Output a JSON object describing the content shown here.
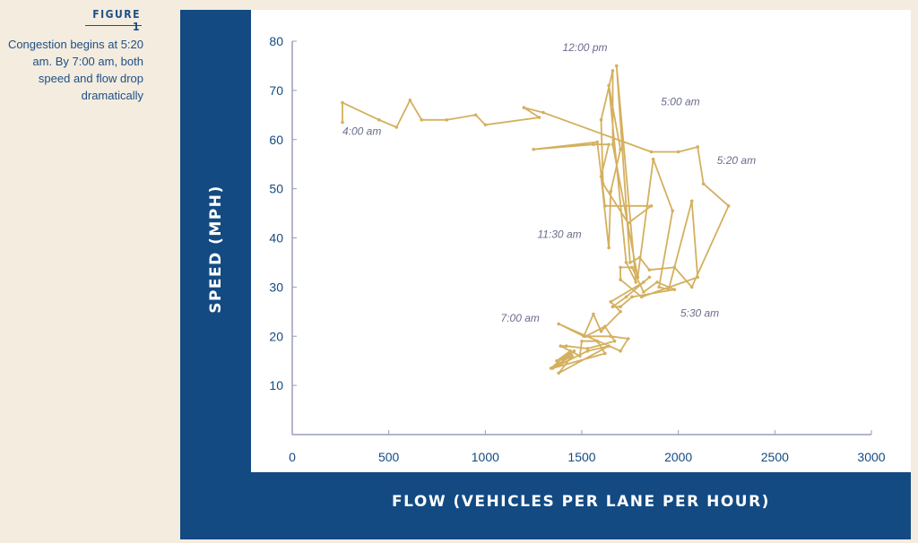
{
  "figure": {
    "label": "FIGURE 1",
    "caption": "Congestion begins at 5:20 am. By 7:00 am, both speed and flow drop dramatically"
  },
  "colors": {
    "background": "#f3ecdf",
    "panel": "#134a82",
    "accent_text": "#1f4f86",
    "series": "#d4b05f",
    "annotation": "#6a6d8c"
  },
  "chart_data": {
    "type": "scatter",
    "xlabel": "FLOW (VEHICLES PER LANE PER HOUR)",
    "ylabel": "SPEED (MPH)",
    "xlim": [
      0,
      3000
    ],
    "ylim": [
      0,
      80
    ],
    "xticks": [
      0,
      500,
      1000,
      1500,
      2000,
      2500,
      3000
    ],
    "yticks": [
      10,
      20,
      30,
      40,
      50,
      60,
      70,
      80
    ],
    "grid": false,
    "series": [
      {
        "x": [
          260,
          260,
          450,
          540,
          610,
          670,
          800,
          950,
          1000,
          1280,
          1200,
          1300,
          1860,
          2000,
          2100,
          2130,
          2260,
          2070,
          1980,
          1850,
          1800,
          1750,
          1680,
          1780,
          1730,
          1640,
          1700,
          1650,
          1640,
          1600,
          1640,
          1560,
          1250,
          1580,
          1620,
          1860,
          1740,
          1610,
          1600,
          1660,
          1660,
          1790,
          1870,
          1970,
          1900,
          1950,
          2070,
          2100,
          1810,
          1700,
          1700,
          1760,
          1820,
          1890,
          1980,
          1760,
          1700,
          1660,
          1730,
          1850,
          1820,
          1650,
          1700,
          1600,
          1560,
          1510,
          1380,
          1700,
          1740,
          1650,
          1520,
          1620,
          1670,
          1530,
          1420,
          1390,
          1490,
          1500,
          1580,
          1620,
          1350,
          1530,
          1640,
          1380,
          1450,
          1340,
          1400,
          1460,
          1380,
          1440,
          1370
        ],
        "y": [
          63.5,
          67.5,
          64,
          62.5,
          68,
          64,
          64,
          65,
          63,
          64.5,
          66.5,
          65.5,
          57.5,
          57.5,
          58.5,
          51,
          46.5,
          30,
          34,
          33.5,
          36,
          35,
          75,
          31,
          35,
          71,
          58,
          49.5,
          38,
          52.5,
          59,
          59,
          58,
          59.5,
          46.5,
          46.5,
          43,
          51,
          64,
          74,
          59,
          32,
          56,
          45.5,
          30,
          29.5,
          47.5,
          32,
          28,
          31.5,
          34,
          34,
          29,
          31,
          29.5,
          28,
          26,
          26,
          28,
          32,
          31,
          27,
          25,
          21,
          24.5,
          20,
          22.5,
          17,
          19.5,
          20,
          20,
          22,
          19,
          17.5,
          18,
          18,
          16,
          19,
          19,
          16.5,
          13.5,
          17,
          18,
          12.5,
          16,
          13.5,
          15.5,
          17,
          14,
          17,
          15
        ]
      }
    ],
    "annotations": [
      {
        "text": "4:00 am",
        "x": 260,
        "y": 61
      },
      {
        "text": "12:00 pm",
        "x": 1400,
        "y": 78
      },
      {
        "text": "5:00 am",
        "x": 1910,
        "y": 67
      },
      {
        "text": "5:20 am",
        "x": 2200,
        "y": 55
      },
      {
        "text": "11:30 am",
        "x": 1270,
        "y": 40
      },
      {
        "text": "7:00 am",
        "x": 1080,
        "y": 23
      },
      {
        "text": "5:30 am",
        "x": 2010,
        "y": 24
      }
    ]
  }
}
